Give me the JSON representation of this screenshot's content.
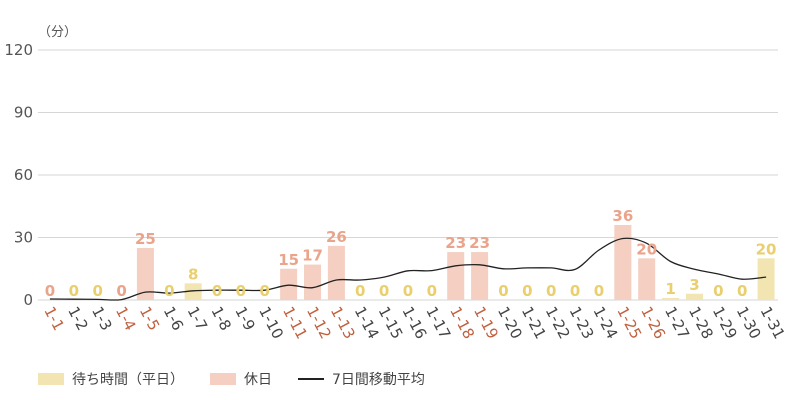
{
  "chart_data": {
    "type": "bar",
    "unit_label": "（分）",
    "ylim": [
      0,
      120
    ],
    "yticks": [
      0,
      30,
      60,
      90,
      120
    ],
    "grid": true,
    "legend_position": "bottom-left",
    "categories": [
      "1-1",
      "1-2",
      "1-3",
      "1-4",
      "1-5",
      "1-6",
      "1-7",
      "1-8",
      "1-9",
      "1-10",
      "1-11",
      "1-12",
      "1-13",
      "1-14",
      "1-15",
      "1-16",
      "1-17",
      "1-18",
      "1-19",
      "1-20",
      "1-21",
      "1-22",
      "1-23",
      "1-24",
      "1-25",
      "1-26",
      "1-27",
      "1-28",
      "1-29",
      "1-30",
      "1-31"
    ],
    "values": [
      0,
      0,
      0,
      0,
      25,
      0,
      8,
      0,
      0,
      0,
      15,
      17,
      26,
      0,
      0,
      0,
      0,
      23,
      23,
      0,
      0,
      0,
      0,
      0,
      36,
      20,
      1,
      3,
      0,
      0,
      20
    ],
    "holiday": [
      true,
      false,
      false,
      true,
      true,
      false,
      false,
      false,
      false,
      false,
      true,
      true,
      true,
      false,
      false,
      false,
      false,
      true,
      true,
      false,
      false,
      false,
      false,
      false,
      true,
      true,
      false,
      false,
      false,
      false,
      false
    ],
    "moving_average": {
      "name": "7日間移動平均",
      "values": [
        0.5,
        0.4,
        0.3,
        0.2,
        3.8,
        3.3,
        4.4,
        4.7,
        4.7,
        4.7,
        7.1,
        5.9,
        9.6,
        9.6,
        11.0,
        14.0,
        14.1,
        16.4,
        16.9,
        15.0,
        15.4,
        15.4,
        14.7,
        24.0,
        29.5,
        27.2,
        18.5,
        14.8,
        12.5,
        10.0,
        11.0
      ]
    },
    "series_labels": {
      "weekday": "待ち時間（平日）",
      "holiday": "休日"
    }
  },
  "colors": {
    "weekday_bar": "#f2e5b1",
    "holiday_bar": "#f4cfc2",
    "weekday_value": "#eacf6e",
    "holiday_value": "#eaa48c",
    "weekday_xlabel": "#444444",
    "holiday_xlabel": "#c0603f",
    "line": "#222222",
    "grid": "#d6d6d6"
  },
  "legend": {
    "weekday": "待ち時間（平日）",
    "holiday": "休日",
    "moving_average": "7日間移動平均"
  }
}
